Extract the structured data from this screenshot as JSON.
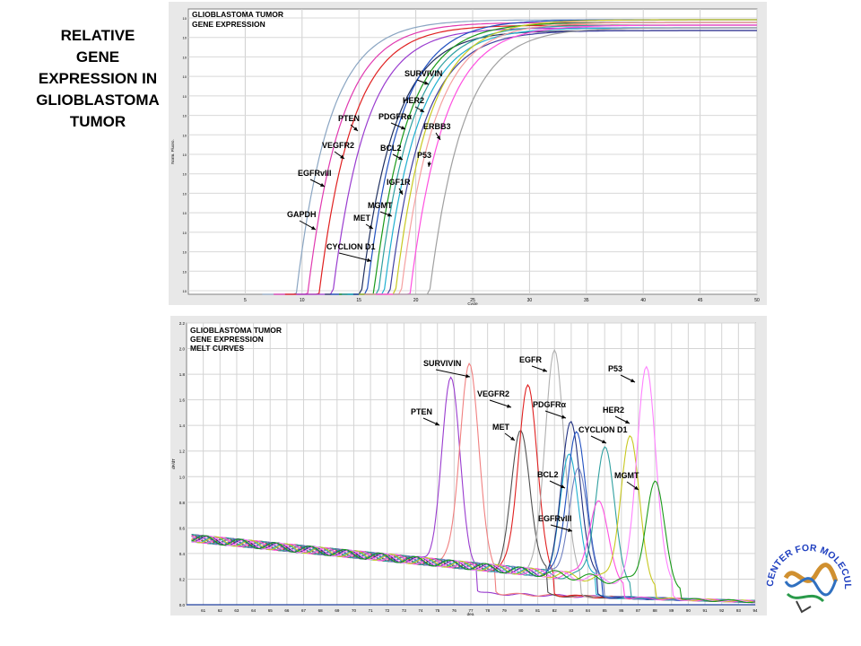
{
  "slide_title": [
    "RELATIVE",
    "GENE",
    "EXPRESSION IN",
    "GLIOBLASTOMA",
    "TUMOR"
  ],
  "logo_text": "CENTER FOR MOLECULAR ANALYSIS & RESEARCH S.A.",
  "chart_data": [
    {
      "type": "line",
      "title": "GLIOBLASTOMA TUMOR GENE EXPRESSION",
      "title_lines": [
        "GLIOBLASTOMA TUMOR",
        "GENE EXPRESSION"
      ],
      "xlabel": "Cycle",
      "ylabel": "Norm. Fluoro.",
      "xlim": [
        0,
        50
      ],
      "x_ticks": [
        5,
        10,
        15,
        20,
        25,
        30,
        35,
        40,
        45,
        50
      ],
      "y_scale": "log",
      "y_tick_count": 15,
      "grid": true,
      "series": [
        {
          "name": "GAPDH",
          "ct": 13.8,
          "color": "#8aa5c2"
        },
        {
          "name": "EGFRvIII",
          "ct": 14.8,
          "color": "#e03ab0"
        },
        {
          "name": "VEGFR2",
          "ct": 15.8,
          "color": "#e02020"
        },
        {
          "name": "PTEN",
          "ct": 17.0,
          "color": "#9a3ccf"
        },
        {
          "name": "CYCLION D1",
          "ct": 19.5,
          "color": "#203060"
        },
        {
          "name": "MET",
          "ct": 20.0,
          "color": "#2050c0"
        },
        {
          "name": "MGMT",
          "ct": 20.6,
          "color": "#1a9a1a"
        },
        {
          "name": "IGF1R",
          "ct": 21.0,
          "color": "#30a0a0"
        },
        {
          "name": "BCL2",
          "ct": 21.5,
          "color": "#20b0d0"
        },
        {
          "name": "PDGFRα",
          "ct": 22.0,
          "color": "#4040a0"
        },
        {
          "name": "HER2",
          "ct": 22.5,
          "color": "#c8c820"
        },
        {
          "name": "SURVIVIN",
          "ct": 23.0,
          "color": "#f5a0a0"
        },
        {
          "name": "ERBB3",
          "ct": 23.8,
          "color": "#ff50e0"
        },
        {
          "name": "P53",
          "ct": 25.5,
          "color": "#a0a0a0"
        }
      ]
    },
    {
      "type": "line",
      "title": "GLIOBLASTOMA TUMOR GENE EXPRESSION MELT CURVES",
      "title_lines": [
        "GLIOBLASTOMA TUMOR",
        "GENE EXPRESSION",
        "MELT CURVES"
      ],
      "xlabel": "deg.",
      "ylabel": "dF/dT",
      "xlim": [
        60,
        94
      ],
      "x_ticks": [
        61,
        62,
        63,
        64,
        65,
        66,
        67,
        68,
        69,
        70,
        71,
        72,
        73,
        74,
        75,
        76,
        77,
        78,
        79,
        80,
        81,
        82,
        83,
        84,
        85,
        86,
        87,
        88,
        89,
        90,
        91,
        92,
        93,
        94
      ],
      "ylim": [
        0,
        2.2
      ],
      "y_ticks": [
        0.0,
        0.2,
        0.4,
        0.6,
        0.8,
        1.0,
        1.2,
        1.4,
        1.6,
        1.8,
        2.0,
        2.2
      ],
      "grid": true,
      "series": [
        {
          "name": "PTEN",
          "peak_temp": 75.8,
          "peak_value": 1.68,
          "color": "#9a3ccf"
        },
        {
          "name": "SURVIVIN",
          "peak_temp": 76.9,
          "peak_value": 1.85,
          "color": "#f08080"
        },
        {
          "name": "MET",
          "peak_temp": 80.0,
          "peak_value": 1.35,
          "color": "#505050"
        },
        {
          "name": "VEGFR2",
          "peak_temp": 80.4,
          "peak_value": 1.73,
          "color": "#e02020"
        },
        {
          "name": "EGFR",
          "peak_temp": 82.0,
          "peak_value": 2.03,
          "color": "#b0b0b0"
        },
        {
          "name": "BCL2",
          "peak_temp": 82.9,
          "peak_value": 1.18,
          "color": "#20b0d0"
        },
        {
          "name": "PDGFRα",
          "peak_temp": 83.0,
          "peak_value": 1.47,
          "color": "#203080"
        },
        {
          "name": "",
          "peak_temp": 83.3,
          "peak_value": 1.4,
          "color": "#2050c0"
        },
        {
          "name": "EGFRvIII",
          "peak_temp": 83.4,
          "peak_value": 1.08,
          "color": "#7080c0"
        },
        {
          "name": "CYCLION D1",
          "peak_temp": 85.0,
          "peak_value": 1.28,
          "color": "#30a0a0"
        },
        {
          "name": "",
          "peak_temp": 84.6,
          "peak_value": 0.86,
          "color": "#ff50e0"
        },
        {
          "name": "HER2",
          "peak_temp": 86.5,
          "peak_value": 1.38,
          "color": "#c8c820"
        },
        {
          "name": "P53",
          "peak_temp": 87.5,
          "peak_value": 1.97,
          "color": "#ff80ff"
        },
        {
          "name": "MGMT",
          "peak_temp": 88.0,
          "peak_value": 1.04,
          "color": "#1a9a1a"
        }
      ]
    }
  ]
}
